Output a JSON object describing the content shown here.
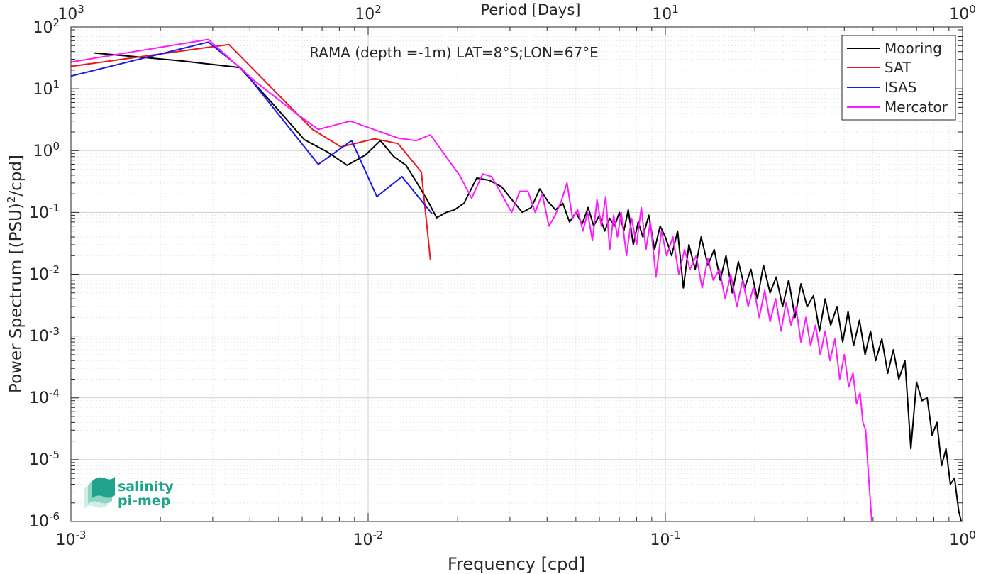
{
  "chart_data": {
    "type": "line",
    "title": "RAMA (depth =-1m) LAT=8°S;LON=67°E",
    "xlabel": "Frequency [cpd]",
    "ylabel_main": "Power Spectrum [(PSU)",
    "ylabel_sup": "2",
    "ylabel_tail": "/cpd]",
    "top_xlabel": "Period [Days]",
    "x_scale": "log",
    "y_scale": "log",
    "xlim": [
      0.001,
      1
    ],
    "ylim": [
      1e-06,
      100
    ],
    "grid": true,
    "legend_position": "top-right",
    "x_ticks": [
      {
        "base": "10",
        "exp": "-3"
      },
      {
        "base": "10",
        "exp": "-2"
      },
      {
        "base": "10",
        "exp": "-1"
      },
      {
        "base": "10",
        "exp": "0"
      }
    ],
    "top_ticks": [
      {
        "base": "10",
        "exp": "3"
      },
      {
        "base": "10",
        "exp": "2"
      },
      {
        "base": "10",
        "exp": "1"
      },
      {
        "base": "10",
        "exp": "0"
      }
    ],
    "y_ticks": [
      {
        "base": "10",
        "exp": "-6"
      },
      {
        "base": "10",
        "exp": "-5"
      },
      {
        "base": "10",
        "exp": "-4"
      },
      {
        "base": "10",
        "exp": "-3"
      },
      {
        "base": "10",
        "exp": "-2"
      },
      {
        "base": "10",
        "exp": "-1"
      },
      {
        "base": "10",
        "exp": "0"
      },
      {
        "base": "10",
        "exp": "1"
      },
      {
        "base": "10",
        "exp": "2"
      }
    ],
    "series": [
      {
        "name": "Mooring",
        "color": "#000000",
        "points": [
          [
            0.0012,
            38
          ],
          [
            0.0024,
            28
          ],
          [
            0.0037,
            22
          ],
          [
            0.0049,
            5
          ],
          [
            0.0061,
            1.5
          ],
          [
            0.0073,
            0.95
          ],
          [
            0.0085,
            0.58
          ],
          [
            0.0098,
            0.85
          ],
          [
            0.011,
            1.45
          ],
          [
            0.0122,
            0.8
          ],
          [
            0.0134,
            0.58
          ],
          [
            0.0146,
            0.3
          ],
          [
            0.0158,
            0.16
          ],
          [
            0.017,
            0.082
          ],
          [
            0.0183,
            0.1
          ],
          [
            0.0195,
            0.11
          ],
          [
            0.021,
            0.14
          ],
          [
            0.0232,
            0.36
          ],
          [
            0.0256,
            0.33
          ],
          [
            0.0281,
            0.26
          ],
          [
            0.0305,
            0.16
          ],
          [
            0.033,
            0.1
          ],
          [
            0.0354,
            0.12
          ],
          [
            0.0378,
            0.24
          ],
          [
            0.0403,
            0.15
          ],
          [
            0.0427,
            0.11
          ],
          [
            0.0452,
            0.14
          ],
          [
            0.0476,
            0.07
          ],
          [
            0.05,
            0.1
          ],
          [
            0.0525,
            0.065
          ],
          [
            0.055,
            0.12
          ],
          [
            0.0574,
            0.06
          ],
          [
            0.06,
            0.09
          ],
          [
            0.0625,
            0.05
          ],
          [
            0.065,
            0.08
          ],
          [
            0.0675,
            0.06
          ],
          [
            0.07,
            0.1
          ],
          [
            0.0725,
            0.05
          ],
          [
            0.075,
            0.11
          ],
          [
            0.078,
            0.03
          ],
          [
            0.081,
            0.07
          ],
          [
            0.084,
            0.04
          ],
          [
            0.088,
            0.09
          ],
          [
            0.092,
            0.025
          ],
          [
            0.096,
            0.06
          ],
          [
            0.1,
            0.04
          ],
          [
            0.105,
            0.02
          ],
          [
            0.11,
            0.05
          ],
          [
            0.115,
            0.006
          ],
          [
            0.12,
            0.03
          ],
          [
            0.126,
            0.012
          ],
          [
            0.132,
            0.04
          ],
          [
            0.139,
            0.014
          ],
          [
            0.146,
            0.025
          ],
          [
            0.153,
            0.008
          ],
          [
            0.16,
            0.02
          ],
          [
            0.168,
            0.005
          ],
          [
            0.176,
            0.016
          ],
          [
            0.185,
            0.006
          ],
          [
            0.194,
            0.012
          ],
          [
            0.204,
            0.004
          ],
          [
            0.214,
            0.014
          ],
          [
            0.225,
            0.005
          ],
          [
            0.236,
            0.009
          ],
          [
            0.248,
            0.003
          ],
          [
            0.26,
            0.008
          ],
          [
            0.273,
            0.002
          ],
          [
            0.286,
            0.007
          ],
          [
            0.3,
            0.003
          ],
          [
            0.315,
            0.0045
          ],
          [
            0.33,
            0.0012
          ],
          [
            0.345,
            0.004
          ],
          [
            0.36,
            0.0015
          ],
          [
            0.378,
            0.003
          ],
          [
            0.395,
            0.0008
          ],
          [
            0.412,
            0.0025
          ],
          [
            0.43,
            0.0007
          ],
          [
            0.45,
            0.0018
          ],
          [
            0.47,
            0.0005
          ],
          [
            0.49,
            0.0012
          ],
          [
            0.51,
            0.0004
          ],
          [
            0.535,
            0.0009
          ],
          [
            0.56,
            0.00025
          ],
          [
            0.585,
            0.0006
          ],
          [
            0.61,
            0.0002
          ],
          [
            0.64,
            0.0004
          ],
          [
            0.67,
            1.5e-05
          ],
          [
            0.7,
            0.00018
          ],
          [
            0.73,
            9e-05
          ],
          [
            0.76,
            0.0001
          ],
          [
            0.79,
            2.5e-05
          ],
          [
            0.82,
            4e-05
          ],
          [
            0.85,
            8e-06
          ],
          [
            0.88,
            1.5e-05
          ],
          [
            0.91,
            4e-06
          ],
          [
            0.94,
            5e-06
          ],
          [
            0.97,
            1.5e-06
          ],
          [
            0.99,
            1e-06
          ]
        ]
      },
      {
        "name": "SAT",
        "color": "#e6191c",
        "points": [
          [
            0.001,
            23
          ],
          [
            0.0029,
            47
          ],
          [
            0.0034,
            52
          ],
          [
            0.0065,
            2.2
          ],
          [
            0.0081,
            1.15
          ],
          [
            0.0105,
            1.55
          ],
          [
            0.0126,
            1.3
          ],
          [
            0.0151,
            0.45
          ],
          [
            0.0162,
            0.017
          ]
        ]
      },
      {
        "name": "ISAS",
        "color": "#1a1ae6",
        "points": [
          [
            0.001,
            16
          ],
          [
            0.0029,
            57
          ],
          [
            0.0038,
            20
          ],
          [
            0.0068,
            0.6
          ],
          [
            0.0088,
            1.45
          ],
          [
            0.0107,
            0.18
          ],
          [
            0.013,
            0.38
          ],
          [
            0.0164,
            0.095
          ]
        ]
      },
      {
        "name": "Mercator",
        "color": "#ff1aff",
        "points": [
          [
            0.001,
            27
          ],
          [
            0.0029,
            63
          ],
          [
            0.0041,
            14
          ],
          [
            0.0058,
            3.8
          ],
          [
            0.0068,
            2.2
          ],
          [
            0.0087,
            3.0
          ],
          [
            0.0126,
            1.6
          ],
          [
            0.0145,
            1.45
          ],
          [
            0.0162,
            1.8
          ],
          [
            0.0203,
            0.4
          ],
          [
            0.0223,
            0.17
          ],
          [
            0.0243,
            0.42
          ],
          [
            0.026,
            0.38
          ],
          [
            0.0281,
            0.2
          ],
          [
            0.0304,
            0.1
          ],
          [
            0.0324,
            0.22
          ],
          [
            0.0345,
            0.22
          ],
          [
            0.0365,
            0.1
          ],
          [
            0.0385,
            0.2
          ],
          [
            0.0406,
            0.06
          ],
          [
            0.0426,
            0.09
          ],
          [
            0.0446,
            0.15
          ],
          [
            0.0467,
            0.3
          ],
          [
            0.0487,
            0.08
          ],
          [
            0.0507,
            0.11
          ],
          [
            0.0528,
            0.05
          ],
          [
            0.0548,
            0.1
          ],
          [
            0.0568,
            0.035
          ],
          [
            0.0589,
            0.16
          ],
          [
            0.0609,
            0.06
          ],
          [
            0.063,
            0.18
          ],
          [
            0.065,
            0.025
          ],
          [
            0.067,
            0.09
          ],
          [
            0.069,
            0.04
          ],
          [
            0.071,
            0.1
          ],
          [
            0.074,
            0.02
          ],
          [
            0.077,
            0.08
          ],
          [
            0.08,
            0.03
          ],
          [
            0.083,
            0.12
          ],
          [
            0.086,
            0.025
          ],
          [
            0.089,
            0.07
          ],
          [
            0.093,
            0.009
          ],
          [
            0.097,
            0.05
          ],
          [
            0.101,
            0.02
          ],
          [
            0.106,
            0.04
          ],
          [
            0.111,
            0.01
          ],
          [
            0.116,
            0.025
          ],
          [
            0.121,
            0.012
          ],
          [
            0.127,
            0.02
          ],
          [
            0.133,
            0.006
          ],
          [
            0.139,
            0.018
          ],
          [
            0.145,
            0.008
          ],
          [
            0.152,
            0.012
          ],
          [
            0.159,
            0.004
          ],
          [
            0.166,
            0.01
          ],
          [
            0.174,
            0.003
          ],
          [
            0.182,
            0.008
          ],
          [
            0.19,
            0.003
          ],
          [
            0.198,
            0.0062
          ],
          [
            0.207,
            0.002
          ],
          [
            0.216,
            0.0055
          ],
          [
            0.225,
            0.0017
          ],
          [
            0.235,
            0.004
          ],
          [
            0.245,
            0.0012
          ],
          [
            0.255,
            0.0035
          ],
          [
            0.265,
            0.0015
          ],
          [
            0.275,
            0.003
          ],
          [
            0.286,
            0.0008
          ],
          [
            0.297,
            0.002
          ],
          [
            0.308,
            0.0007
          ],
          [
            0.32,
            0.0015
          ],
          [
            0.332,
            0.0005
          ],
          [
            0.345,
            0.0012
          ],
          [
            0.358,
            0.0004
          ],
          [
            0.372,
            0.0009
          ],
          [
            0.386,
            0.0002
          ],
          [
            0.4,
            0.0005
          ],
          [
            0.414,
            0.00015
          ],
          [
            0.428,
            0.00025
          ],
          [
            0.44,
            8e-05
          ],
          [
            0.452,
            0.00012
          ],
          [
            0.462,
            4e-05
          ],
          [
            0.472,
            3e-05
          ],
          [
            0.482,
            6e-06
          ],
          [
            0.49,
            2e-06
          ],
          [
            0.495,
            1e-06
          ]
        ]
      }
    ]
  },
  "logo": {
    "line1": "salinity",
    "line2": "pi-mep",
    "color": "#1fa38a"
  }
}
